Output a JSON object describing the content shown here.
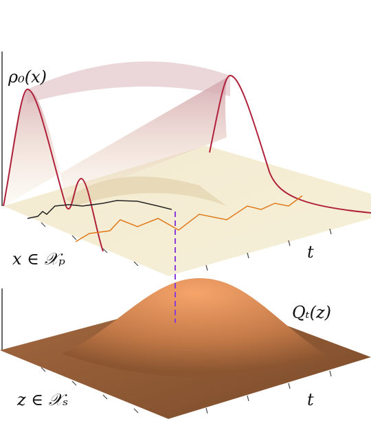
{
  "labels": {
    "rho": "ρ₀(x)",
    "x_space": "x ∈ 𝒳ₚ",
    "t_top": "t",
    "q": "Qₜ(z)",
    "z_space": "z ∈ 𝒳ₛ",
    "t_bottom": "t"
  }
}
